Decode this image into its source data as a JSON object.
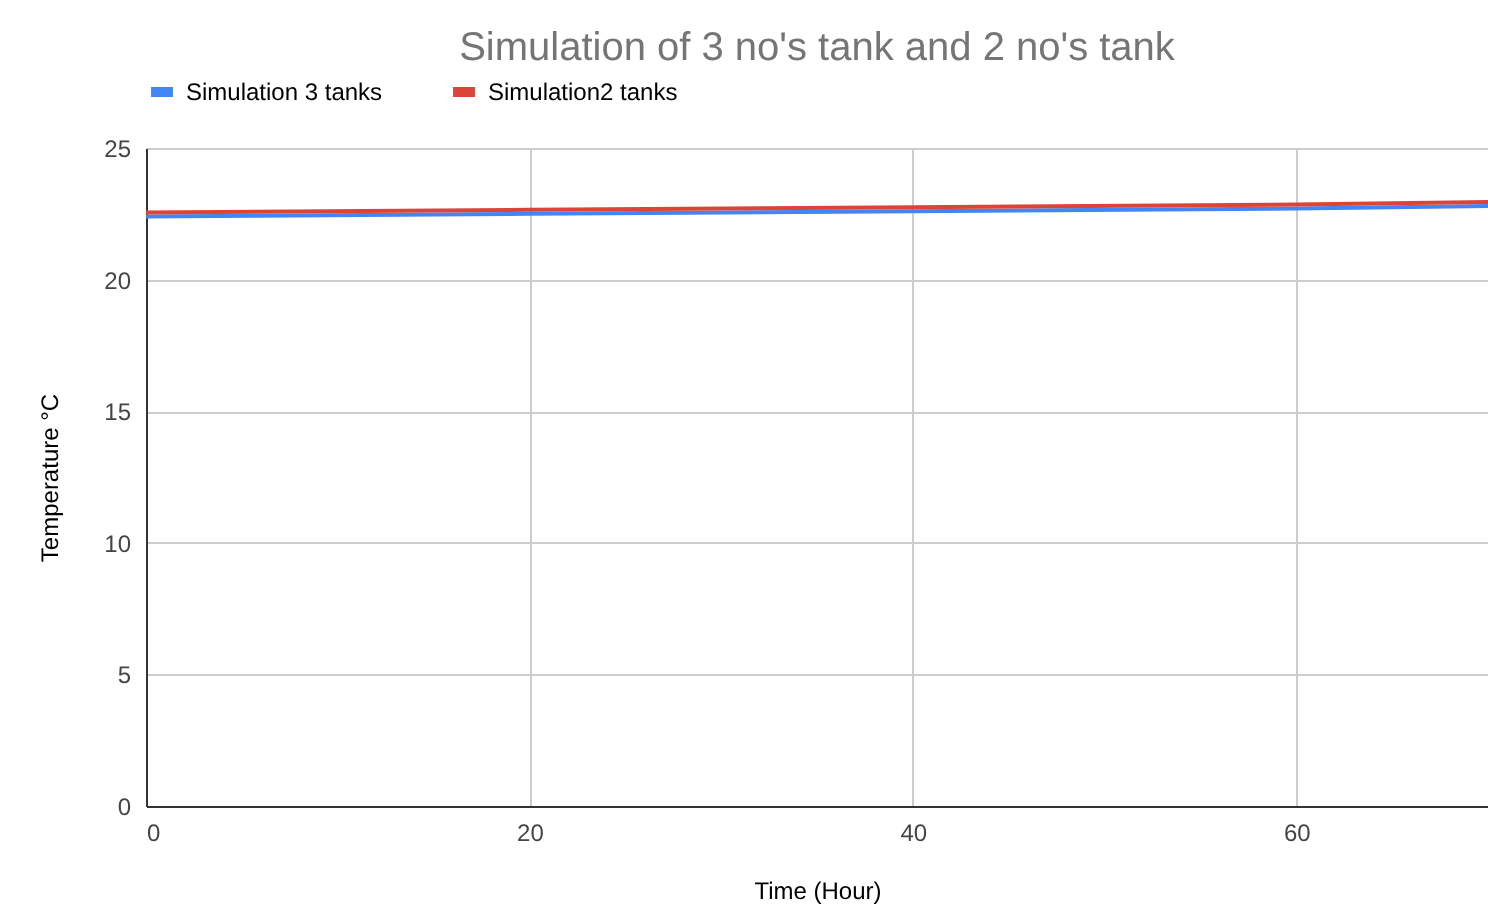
{
  "chart_data": {
    "type": "line",
    "title": "Simulation of  3 no's tank and 2 no's tank",
    "xlabel": "Time (Hour)",
    "ylabel": "Temperature °C",
    "x": [
      0,
      20,
      40,
      60,
      70
    ],
    "series": [
      {
        "name": "Simulation 3 tanks",
        "color": "#4285f4",
        "values": [
          22.4,
          22.5,
          22.6,
          22.7,
          22.8
        ]
      },
      {
        "name": "Simulation2 tanks",
        "color": "#db4437",
        "values": [
          22.55,
          22.65,
          22.75,
          22.85,
          22.95
        ]
      }
    ],
    "xlim": [
      0,
      70
    ],
    "xticks": [
      0,
      20,
      40,
      60
    ],
    "ylim": [
      0,
      25
    ],
    "yticks": [
      0,
      5,
      10,
      15,
      20,
      25
    ],
    "grid": true,
    "legend": "top",
    "marker": "none",
    "line_style": "solid"
  }
}
